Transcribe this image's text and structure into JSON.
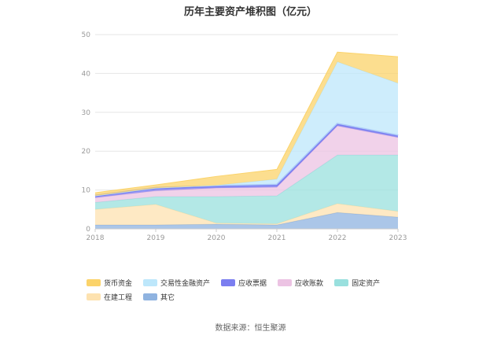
{
  "chart_data": {
    "type": "area",
    "stacked": true,
    "title": "历年主要资产堆积图（亿元）",
    "xlabel": "",
    "ylabel": "",
    "x": [
      "2018",
      "2019",
      "2020",
      "2021",
      "2022",
      "2023"
    ],
    "ylim": [
      0,
      50
    ],
    "yticks": [
      "0",
      "10",
      "20",
      "30",
      "40",
      "50"
    ],
    "grid": true,
    "legend_position": "bottom",
    "series": [
      {
        "name": "其它",
        "color": "#8fb3e0",
        "values": [
          1.0,
          1.0,
          1.2,
          1.0,
          4.2,
          3.0
        ]
      },
      {
        "name": "在建工程",
        "color": "#fde2b0",
        "values": [
          4.0,
          5.3,
          0.3,
          0.3,
          2.3,
          1.5
        ]
      },
      {
        "name": "固定资产",
        "color": "#99e0de",
        "values": [
          1.8,
          2.0,
          6.8,
          7.2,
          12.5,
          14.5
        ]
      },
      {
        "name": "应收账款",
        "color": "#ecc3e3",
        "values": [
          1.2,
          1.5,
          2.2,
          2.2,
          7.5,
          4.5
        ]
      },
      {
        "name": "应收票据",
        "color": "#7b7ef0",
        "values": [
          0.5,
          0.7,
          0.5,
          0.6,
          0.5,
          0.5
        ]
      },
      {
        "name": "交易性金融资产",
        "color": "#bde7fb",
        "values": [
          0.0,
          0.0,
          0.2,
          1.5,
          16.0,
          13.5
        ]
      },
      {
        "name": "货币资金",
        "color": "#fbd36a",
        "values": [
          0.8,
          0.8,
          2.3,
          2.5,
          2.5,
          6.8
        ]
      }
    ],
    "legend_order": [
      "货币资金",
      "交易性金融资产",
      "应收票据",
      "应收账款",
      "固定资产",
      "在建工程",
      "其它"
    ]
  },
  "source": "数据来源：恒生聚源"
}
